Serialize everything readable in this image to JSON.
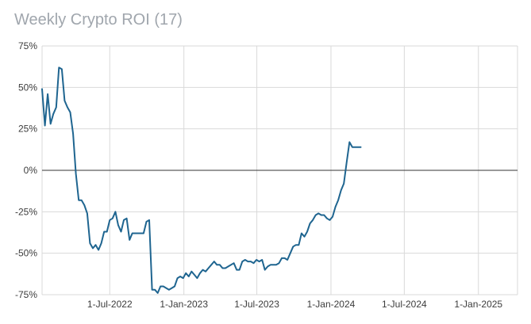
{
  "chart_data": {
    "type": "line",
    "title": "Weekly Crypto ROI (17)",
    "xlabel": "",
    "ylabel": "",
    "y_tick_labels": [
      "75%",
      "50%",
      "25%",
      "0%",
      "-25%",
      "-50%",
      "-75%"
    ],
    "y_tick_values": [
      75,
      50,
      25,
      0,
      -25,
      -50,
      -75
    ],
    "x_tick_labels": [
      "1-Jul-2022",
      "1-Jan-2023",
      "1-Jul-2023",
      "1-Jan-2024",
      "1-Jul-2024",
      "1-Jan-2025"
    ],
    "x_tick_values": [
      "2022-07-01",
      "2023-01-01",
      "2023-07-01",
      "2024-01-01",
      "2024-07-01",
      "2025-01-01"
    ],
    "xlim": [
      "2022-01-14",
      "2025-04-08"
    ],
    "ylim": [
      -75,
      75
    ],
    "grid": true,
    "legend": "none",
    "colors": {
      "line": "#1f6590",
      "grid": "#d9d9d9",
      "zero_line": "#333333",
      "title": "#a0a6ad"
    },
    "series": [
      {
        "x": [
          "2022-01-14",
          "2022-01-21",
          "2022-01-28",
          "2022-02-04",
          "2022-02-11",
          "2022-02-18",
          "2022-02-25",
          "2022-03-04",
          "2022-03-11",
          "2022-03-18",
          "2022-03-25",
          "2022-04-01",
          "2022-04-08",
          "2022-04-15",
          "2022-04-22",
          "2022-04-29",
          "2022-05-06",
          "2022-05-13",
          "2022-05-20",
          "2022-05-27",
          "2022-06-03",
          "2022-06-10",
          "2022-06-17",
          "2022-06-24",
          "2022-07-01",
          "2022-07-08",
          "2022-07-15",
          "2022-07-22",
          "2022-07-29",
          "2022-08-05",
          "2022-08-12",
          "2022-08-19",
          "2022-08-26",
          "2022-09-02",
          "2022-09-09",
          "2022-09-16",
          "2022-09-23",
          "2022-09-30",
          "2022-10-07",
          "2022-10-14",
          "2022-10-21",
          "2022-10-28",
          "2022-11-04",
          "2022-11-11",
          "2022-11-18",
          "2022-11-25",
          "2022-12-02",
          "2022-12-09",
          "2022-12-16",
          "2022-12-23",
          "2022-12-30",
          "2023-01-06",
          "2023-01-13",
          "2023-01-20",
          "2023-01-27",
          "2023-02-03",
          "2023-02-10",
          "2023-02-17",
          "2023-02-24",
          "2023-03-03",
          "2023-03-10",
          "2023-03-17",
          "2023-03-24",
          "2023-03-31",
          "2023-04-07",
          "2023-04-14",
          "2023-04-21",
          "2023-04-28",
          "2023-05-05",
          "2023-05-12",
          "2023-05-19",
          "2023-05-26",
          "2023-06-02",
          "2023-06-09",
          "2023-06-16",
          "2023-06-23",
          "2023-06-30",
          "2023-07-07",
          "2023-07-14",
          "2023-07-21",
          "2023-07-28",
          "2023-08-04",
          "2023-08-11",
          "2023-08-18",
          "2023-08-25",
          "2023-09-01",
          "2023-09-08",
          "2023-09-15",
          "2023-09-22",
          "2023-09-29",
          "2023-10-06",
          "2023-10-13",
          "2023-10-20",
          "2023-10-27",
          "2023-11-03",
          "2023-11-10",
          "2023-11-17",
          "2023-11-24",
          "2023-12-01",
          "2023-12-08",
          "2023-12-15",
          "2023-12-22",
          "2023-12-29",
          "2024-01-05",
          "2024-01-12",
          "2024-01-19",
          "2024-01-26",
          "2024-02-02",
          "2024-02-09",
          "2024-02-16",
          "2024-02-23",
          "2024-03-01",
          "2024-03-08",
          "2024-03-15"
        ],
        "values": [
          49,
          27,
          46,
          28,
          34,
          38,
          62,
          61,
          42,
          38,
          35,
          22,
          -2,
          -18,
          -18,
          -21,
          -26,
          -44,
          -47,
          -45,
          -48,
          -44,
          -37,
          -37,
          -30,
          -29,
          -25,
          -33,
          -37,
          -30,
          -29,
          -42,
          -38,
          -38,
          -38,
          -38,
          -38,
          -31,
          -30,
          -72,
          -72,
          -74,
          -70,
          -70,
          -71,
          -72,
          -71,
          -70,
          -65,
          -64,
          -65,
          -62,
          -64,
          -61,
          -63,
          -65,
          -62,
          -60,
          -61,
          -59,
          -57,
          -55,
          -57,
          -57,
          -59,
          -59,
          -58,
          -57,
          -56,
          -60,
          -60,
          -55,
          -54,
          -55,
          -55,
          -56,
          -54,
          -55,
          -54,
          -60,
          -58,
          -57,
          -57,
          -57,
          -56,
          -53,
          -53,
          -54,
          -50,
          -46,
          -45,
          -45,
          -38,
          -40,
          -37,
          -32,
          -30,
          -27,
          -26,
          -27,
          -27,
          -29,
          -30,
          -28,
          -22,
          -18,
          -12,
          -8,
          5,
          17,
          14,
          14,
          14,
          14
        ]
      }
    ]
  }
}
